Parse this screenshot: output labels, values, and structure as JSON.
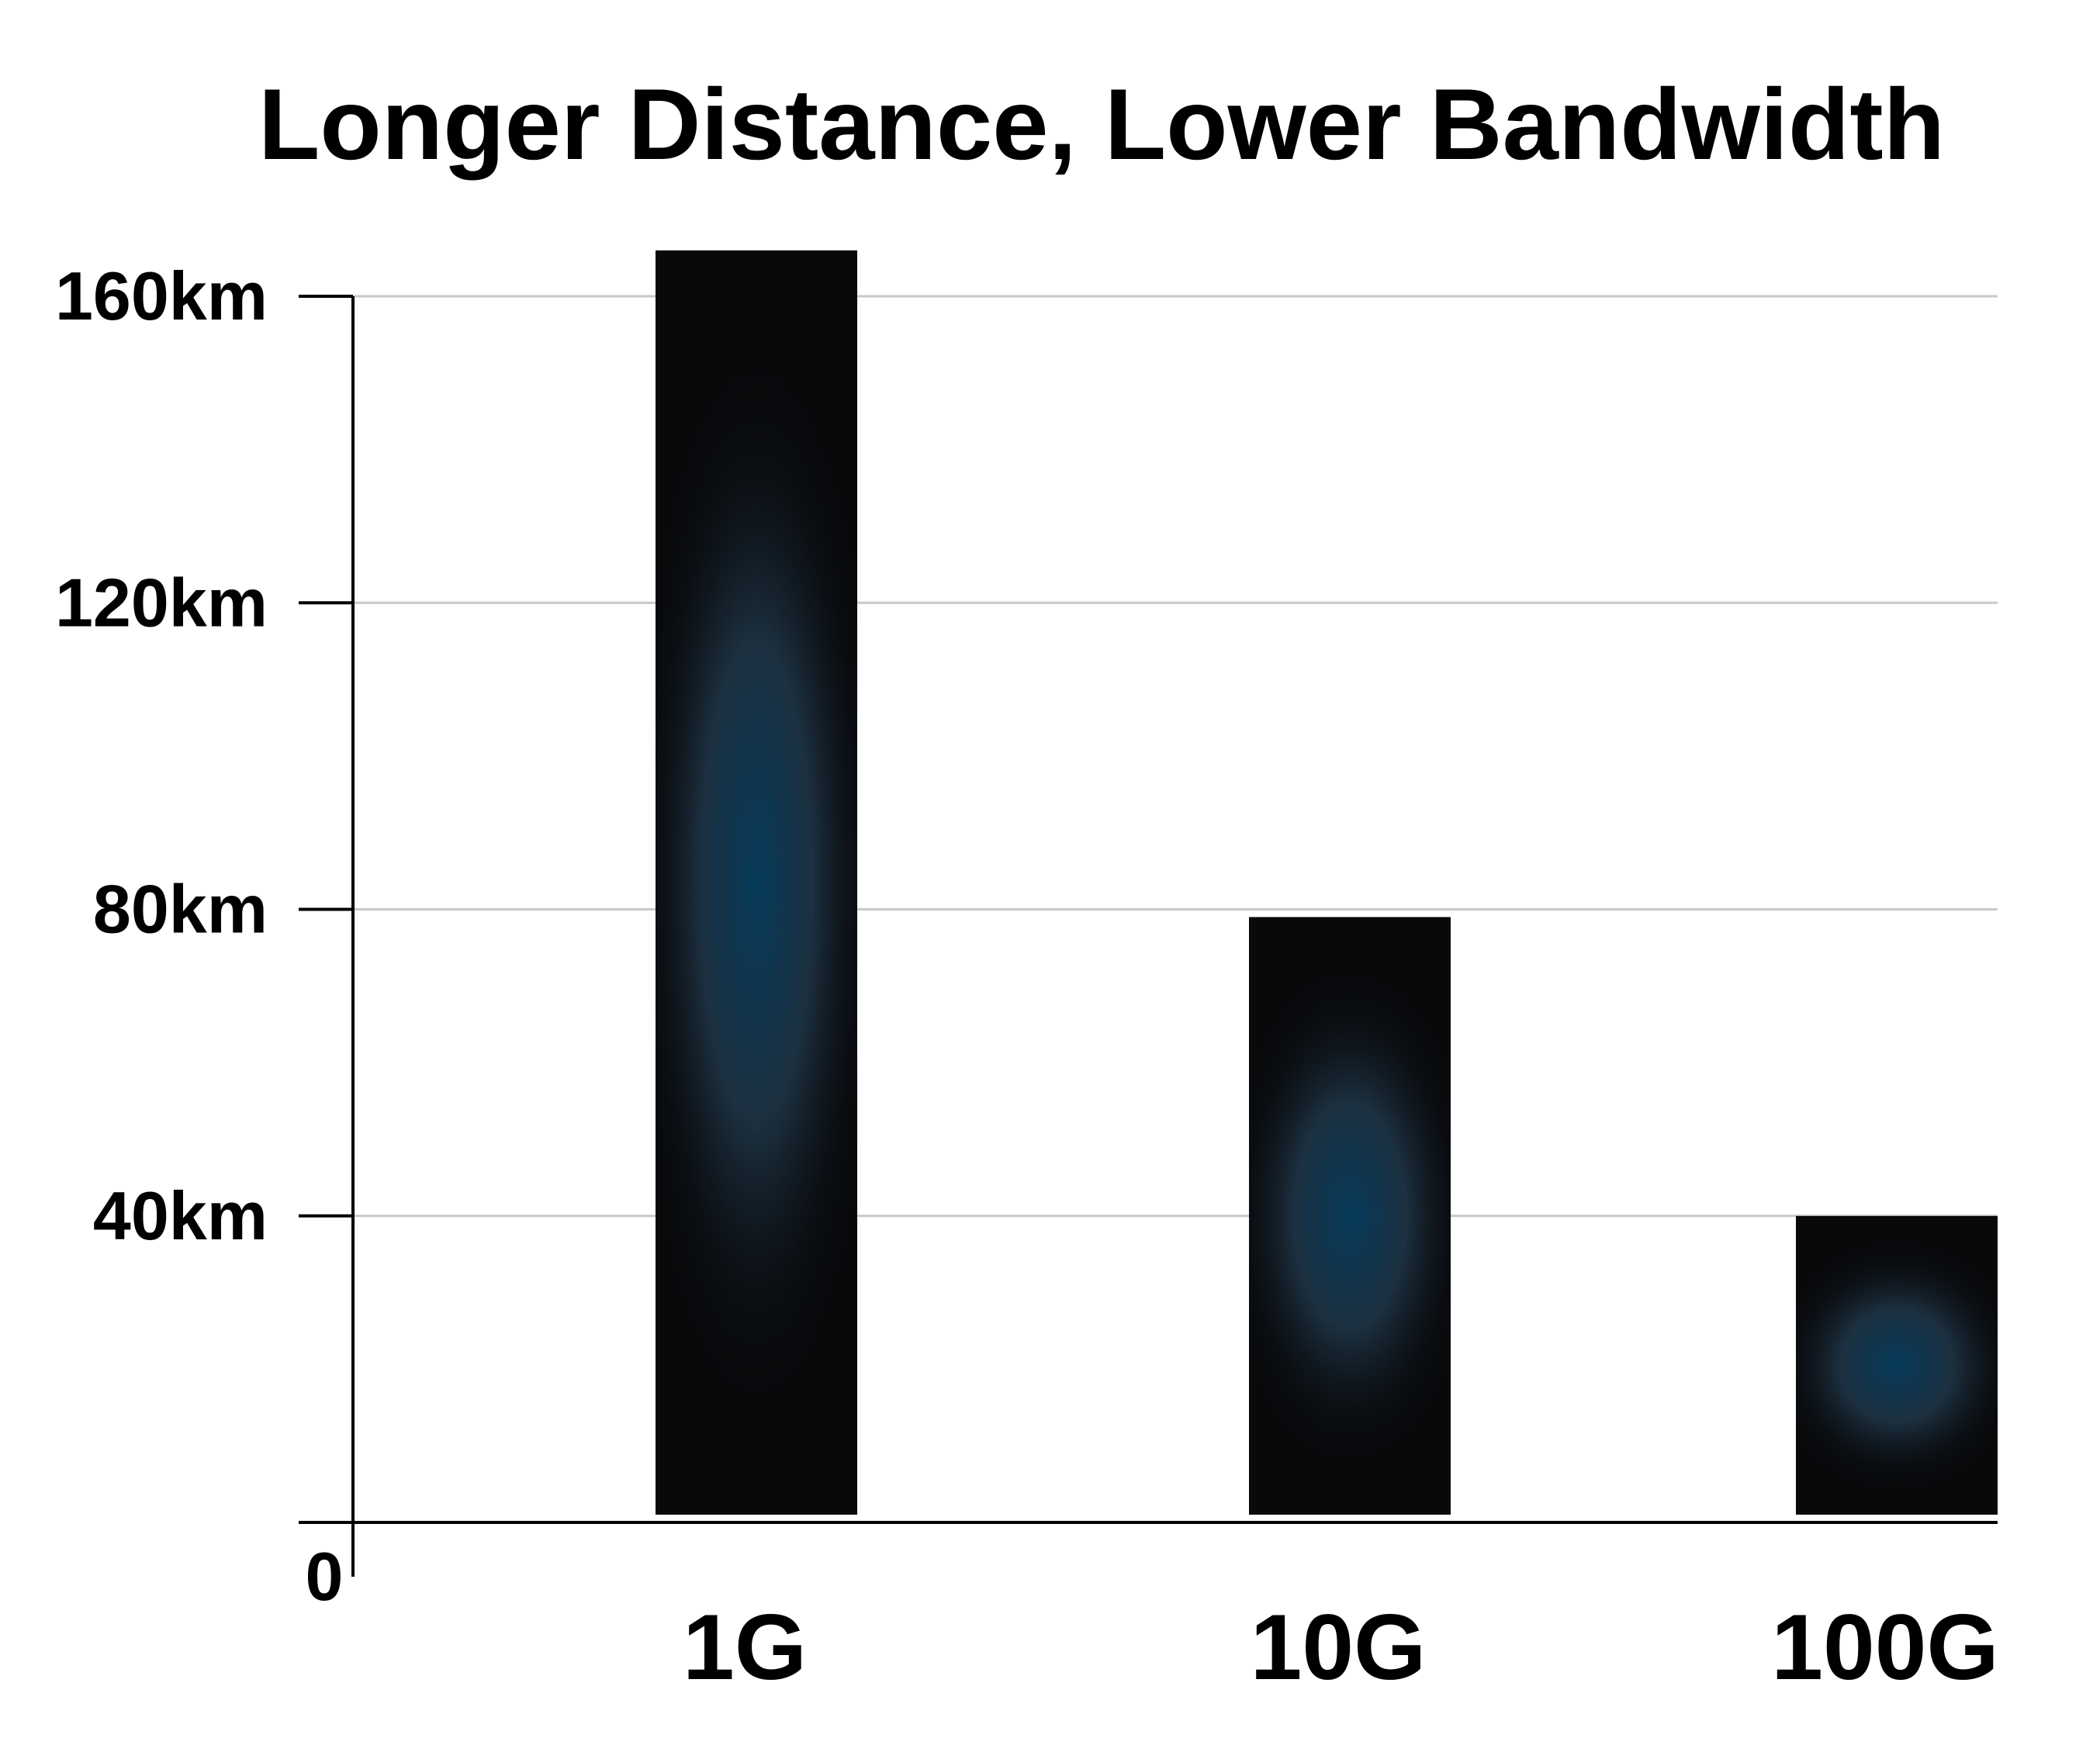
{
  "chart_data": {
    "type": "bar",
    "title": "Longer Distance, Lower Bandwidth",
    "categories": [
      "1G",
      "10G",
      "100G"
    ],
    "values": [
      166,
      79,
      40
    ],
    "ylim": [
      0,
      160
    ],
    "yticks": [
      0,
      40,
      80,
      120,
      160
    ],
    "ytick_labels": [
      "0",
      "40km",
      "80km",
      "120km",
      "160km"
    ],
    "xlabel": "",
    "ylabel": "",
    "grid": true,
    "colors": {
      "bar_dark": "#08090b",
      "bar_glow": "#063a5a",
      "gridline": "#c8c8c8",
      "axis": "#000000",
      "text": "#000000"
    }
  }
}
